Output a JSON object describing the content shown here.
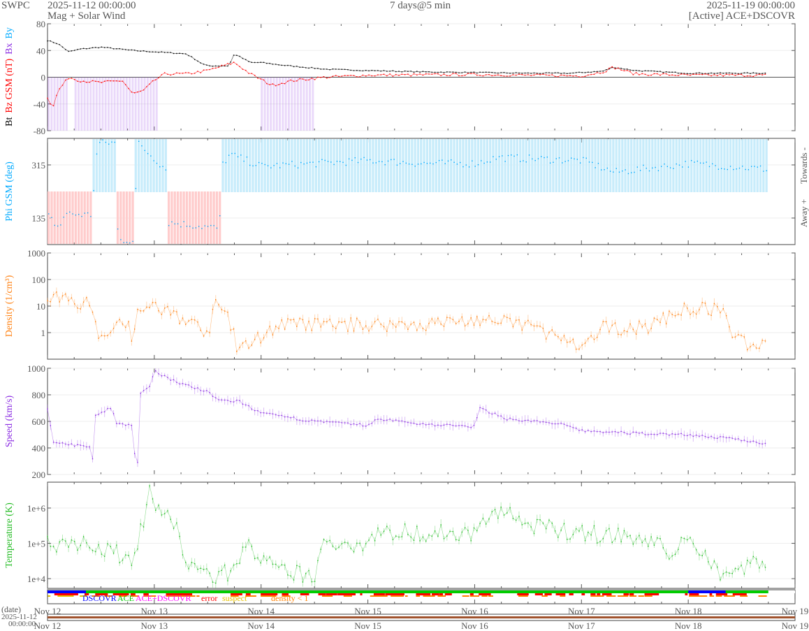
{
  "header": {
    "org": "SWPC",
    "start": "2025-11-12 00:00:00",
    "subtitle": "Mag + Solar Wind",
    "span": "7 days@5 min",
    "end": "2025-11-19 00:00:00",
    "source": "[Active] ACE+DSCOVR"
  },
  "colors": {
    "bt": "#000000",
    "bz": "#ff0000",
    "bx": "#8a2be2",
    "by": "#00aaff",
    "phi_towards": "#c8ecfb",
    "phi_away": "#ffcccc",
    "density": "#ff7f0e",
    "speed": "#8a2be2",
    "temp": "#22bb22",
    "dscovr": "#0000ff",
    "ace": "#00cc00",
    "both": "#ff00ff",
    "error": "#ff0000",
    "suspect": "#e6c200",
    "lowdens": "#ff8000",
    "timeline": "#a0522d"
  },
  "chart_data": [
    {
      "type": "line",
      "ylabel_parts": [
        "Bt",
        "Bz GSM (nT)",
        "Bx",
        "By"
      ],
      "ylim": [
        -80,
        80
      ],
      "yticks": [
        "80",
        "40",
        "0",
        "-40",
        "-80"
      ],
      "series": [
        {
          "name": "Bt",
          "points": [
            [
              0,
              55
            ],
            [
              0.1,
              50
            ],
            [
              0.2,
              38
            ],
            [
              0.3,
              42
            ],
            [
              0.5,
              45
            ],
            [
              0.8,
              40
            ],
            [
              1.3,
              35
            ],
            [
              1.45,
              20
            ],
            [
              1.5,
              17
            ],
            [
              1.7,
              17
            ],
            [
              1.75,
              35
            ],
            [
              1.9,
              22
            ],
            [
              2,
              22
            ],
            [
              2.2,
              18
            ],
            [
              2.4,
              15
            ],
            [
              2.6,
              12
            ],
            [
              3,
              10
            ],
            [
              3.5,
              8
            ],
            [
              4,
              7
            ],
            [
              4.5,
              6
            ],
            [
              4.9,
              6
            ],
            [
              5.2,
              9
            ],
            [
              5.3,
              15
            ],
            [
              5.5,
              10
            ],
            [
              6,
              6
            ],
            [
              6.75,
              6
            ]
          ]
        },
        {
          "name": "Bz",
          "points": [
            [
              0,
              -30
            ],
            [
              0.05,
              -45
            ],
            [
              0.1,
              -20
            ],
            [
              0.2,
              0
            ],
            [
              0.3,
              -5
            ],
            [
              0.5,
              -8
            ],
            [
              0.7,
              -5
            ],
            [
              0.8,
              -25
            ],
            [
              0.9,
              -20
            ],
            [
              1,
              -5
            ],
            [
              1.1,
              5
            ],
            [
              1.3,
              5
            ],
            [
              1.5,
              10
            ],
            [
              1.75,
              22
            ],
            [
              1.9,
              5
            ],
            [
              2.1,
              -12
            ],
            [
              2.3,
              -5
            ],
            [
              2.6,
              0
            ],
            [
              3,
              3
            ],
            [
              4,
              4
            ],
            [
              4.5,
              3
            ],
            [
              5,
              2
            ],
            [
              5.2,
              8
            ],
            [
              5.3,
              15
            ],
            [
              5.5,
              5
            ],
            [
              6,
              3
            ],
            [
              6.75,
              3
            ]
          ]
        }
      ]
    },
    {
      "type": "scatter",
      "ylabel": "Phi GSM (deg)",
      "ylim": [
        45,
        405
      ],
      "yticks": [
        "315",
        "135"
      ],
      "right_labels": [
        "Towards -",
        "Away +"
      ],
      "points": [
        [
          0,
          140
        ],
        [
          0.1,
          100
        ],
        [
          0.15,
          150
        ],
        [
          0.4,
          145
        ],
        [
          0.46,
          390
        ],
        [
          0.62,
          390
        ],
        [
          0.65,
          60
        ],
        [
          0.8,
          60
        ],
        [
          0.83,
          390
        ],
        [
          1.1,
          300
        ],
        [
          1.12,
          120
        ],
        [
          1.6,
          100
        ],
        [
          1.62,
          315
        ],
        [
          1.7,
          350
        ],
        [
          2,
          310
        ],
        [
          3,
          330
        ],
        [
          3.5,
          320
        ],
        [
          4,
          320
        ],
        [
          4.2,
          340
        ],
        [
          5,
          330
        ],
        [
          5.3,
          290
        ],
        [
          6,
          320
        ],
        [
          6.75,
          300
        ]
      ]
    },
    {
      "type": "scatter",
      "ylabel": "Density (1/cm³)",
      "yscale": "log",
      "ylim": [
        0.1,
        1000
      ],
      "yticks": [
        "1000",
        "100",
        "10",
        "1"
      ],
      "points": [
        [
          0,
          15
        ],
        [
          0.1,
          20
        ],
        [
          0.4,
          12
        ],
        [
          0.45,
          3
        ],
        [
          0.5,
          0.5
        ],
        [
          0.6,
          2
        ],
        [
          0.75,
          3
        ],
        [
          0.8,
          0.5
        ],
        [
          0.86,
          10
        ],
        [
          1.1,
          7
        ],
        [
          1.3,
          3
        ],
        [
          1.5,
          1
        ],
        [
          1.58,
          12
        ],
        [
          1.7,
          4
        ],
        [
          1.78,
          0.2
        ],
        [
          2.17,
          2
        ],
        [
          3,
          2
        ],
        [
          3.5,
          2
        ],
        [
          4,
          3
        ],
        [
          4.5,
          2
        ],
        [
          4.85,
          0.5
        ],
        [
          5,
          0.2
        ],
        [
          5.2,
          1.5
        ],
        [
          5.6,
          1.5
        ],
        [
          5.85,
          5
        ],
        [
          6,
          8
        ],
        [
          6.3,
          8
        ],
        [
          6.4,
          1
        ],
        [
          6.6,
          0.3
        ],
        [
          6.75,
          0.6
        ]
      ]
    },
    {
      "type": "scatter",
      "ylabel": "Speed (km/s)",
      "ylim": [
        200,
        1000
      ],
      "yticks": [
        "1000",
        "800",
        "600",
        "400",
        "200"
      ],
      "points": [
        [
          0,
          700
        ],
        [
          0.05,
          450
        ],
        [
          0.4,
          400
        ],
        [
          0.42,
          300
        ],
        [
          0.45,
          650
        ],
        [
          0.6,
          700
        ],
        [
          0.65,
          580
        ],
        [
          0.8,
          570
        ],
        [
          0.82,
          290
        ],
        [
          0.85,
          290
        ],
        [
          0.86,
          800
        ],
        [
          0.95,
          850
        ],
        [
          1.0,
          980
        ],
        [
          1.2,
          900
        ],
        [
          1.5,
          820
        ],
        [
          1.6,
          760
        ],
        [
          1.8,
          750
        ],
        [
          2,
          660
        ],
        [
          2.5,
          600
        ],
        [
          3,
          570
        ],
        [
          3.1,
          620
        ],
        [
          3.5,
          580
        ],
        [
          4,
          560
        ],
        [
          4.05,
          700
        ],
        [
          4.2,
          650
        ],
        [
          4.3,
          620
        ],
        [
          4.8,
          580
        ],
        [
          5,
          530
        ],
        [
          5.5,
          510
        ],
        [
          6,
          500
        ],
        [
          6.5,
          460
        ],
        [
          6.75,
          430
        ]
      ]
    },
    {
      "type": "scatter",
      "ylabel": "Temperature (K)",
      "yscale": "log",
      "ylim": [
        5300,
        5400000
      ],
      "yticks": [
        "1e+6",
        "1e+5",
        "1e+4"
      ],
      "points": [
        [
          0,
          100000
        ],
        [
          0.4,
          120000
        ],
        [
          0.5,
          60000
        ],
        [
          0.8,
          40000
        ],
        [
          0.9,
          500000
        ],
        [
          0.95,
          2500000
        ],
        [
          1.1,
          600000
        ],
        [
          1.2,
          300000
        ],
        [
          1.3,
          30000
        ],
        [
          1.5,
          12000
        ],
        [
          1.7,
          15000
        ],
        [
          1.8,
          40000
        ],
        [
          1.9,
          100000
        ],
        [
          2,
          30000
        ],
        [
          2.2,
          15000
        ],
        [
          2.5,
          12000
        ],
        [
          2.6,
          100000
        ],
        [
          3,
          100000
        ],
        [
          3.05,
          200000
        ],
        [
          3.5,
          200000
        ],
        [
          4,
          200000
        ],
        [
          4.1,
          500000
        ],
        [
          4.35,
          800000
        ],
        [
          4.5,
          300000
        ],
        [
          5,
          200000
        ],
        [
          5.5,
          150000
        ],
        [
          5.9,
          50000
        ],
        [
          6,
          200000
        ],
        [
          6.2,
          30000
        ],
        [
          6.3,
          15000
        ],
        [
          6.75,
          30000
        ]
      ]
    }
  ],
  "legend": [
    "DSCOVR",
    "ACE",
    "ACE+DSCOVR",
    "error",
    "suspect",
    "density < 1"
  ],
  "xaxis": {
    "ticks": [
      "Nov 12",
      "Nov 13",
      "Nov 14",
      "Nov 15",
      "Nov 16",
      "Nov 17",
      "Nov 18",
      "Nov 19"
    ],
    "date_label": "(date)",
    "date_value": "2025-11-12",
    "time_value": "00:00:00"
  }
}
